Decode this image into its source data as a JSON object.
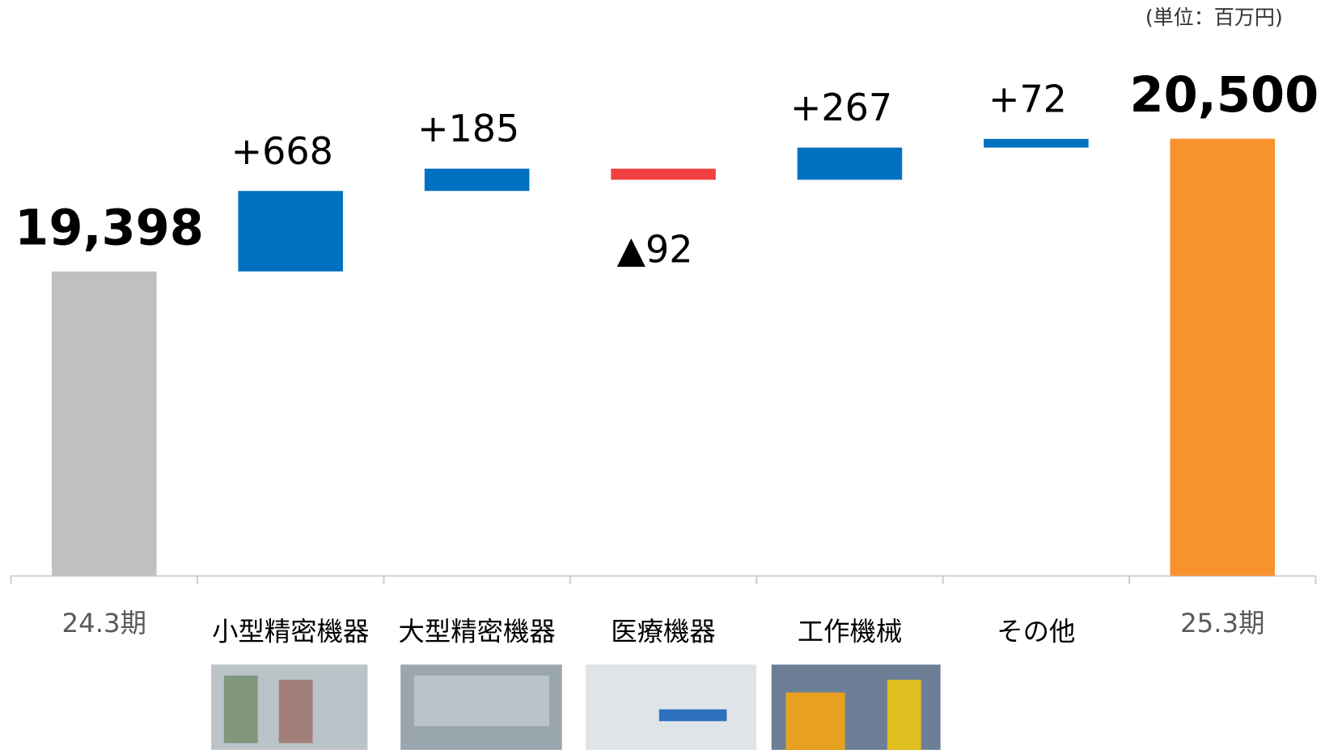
{
  "chart_data": {
    "type": "waterfall",
    "unit_note": "(単位：百万円)",
    "categories": [
      "24.3期",
      "小型精密機器",
      "大型精密機器",
      "医療機器",
      "工作機械",
      "その他",
      "25.3期"
    ],
    "values": [
      19398,
      668,
      185,
      -92,
      267,
      72,
      20500
    ],
    "value_labels": [
      "19,398",
      "+668",
      "+185",
      "▲92",
      "+267",
      "+72",
      "20,500"
    ],
    "colors": [
      "#c0c0c0",
      "#0070c0",
      "#0070c0",
      "#f04040",
      "#0070c0",
      "#0070c0",
      "#f7922e"
    ],
    "ylim": [
      16870,
      21650
    ]
  }
}
